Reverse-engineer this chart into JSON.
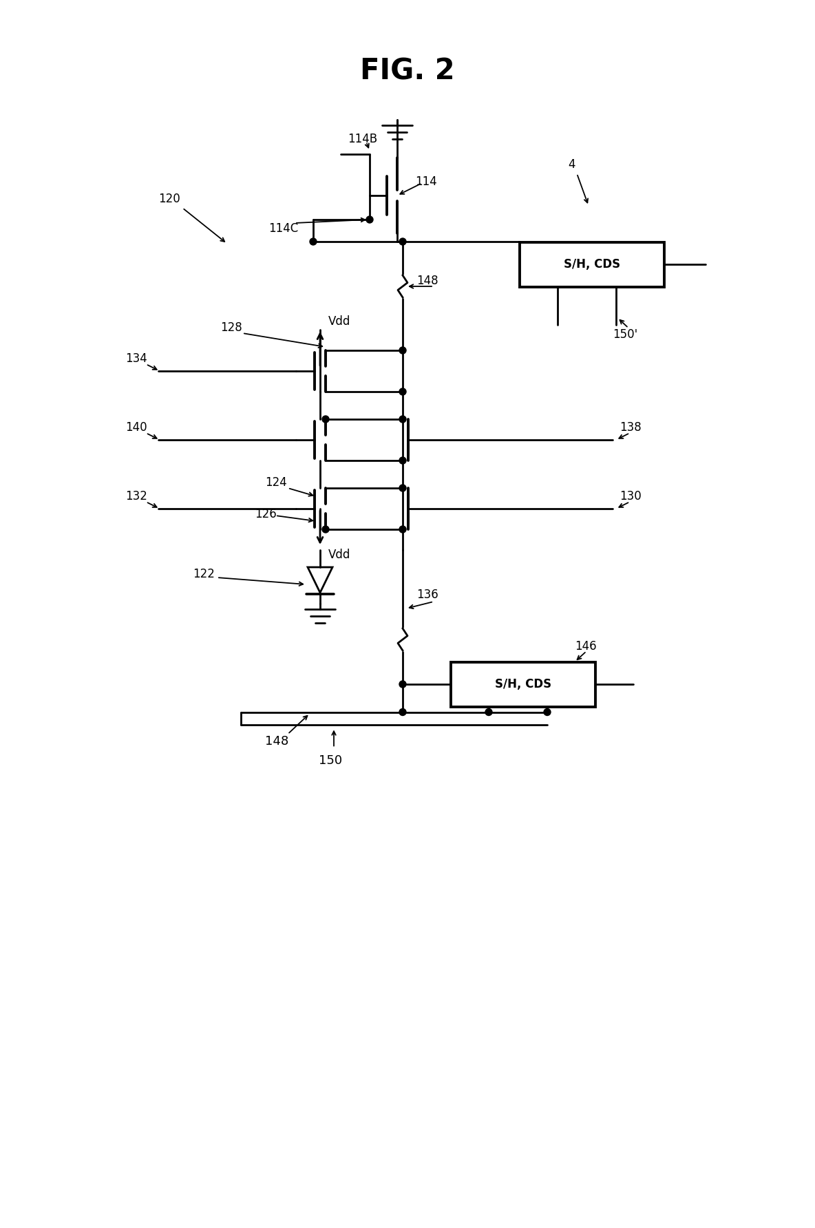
{
  "background_color": "#ffffff",
  "labels": {
    "fig_title": "FIG. 2",
    "n120": "120",
    "n114B": "114B",
    "n114C": "114C",
    "n114": "114",
    "n4": "4",
    "n148_top": "148",
    "n150_prime": "150'",
    "n128": "128",
    "n134": "134",
    "n140": "140",
    "n138": "138",
    "n124": "124",
    "n132": "132",
    "n126": "126",
    "n130": "130",
    "n122": "122",
    "n136": "136",
    "n146": "146",
    "n148_bot": "148",
    "n150": "150",
    "vdd_top": "Vdd",
    "vdd_bot": "Vdd",
    "shcds_top": "S/H, CDS",
    "shcds_bot": "S/H, CDS"
  }
}
